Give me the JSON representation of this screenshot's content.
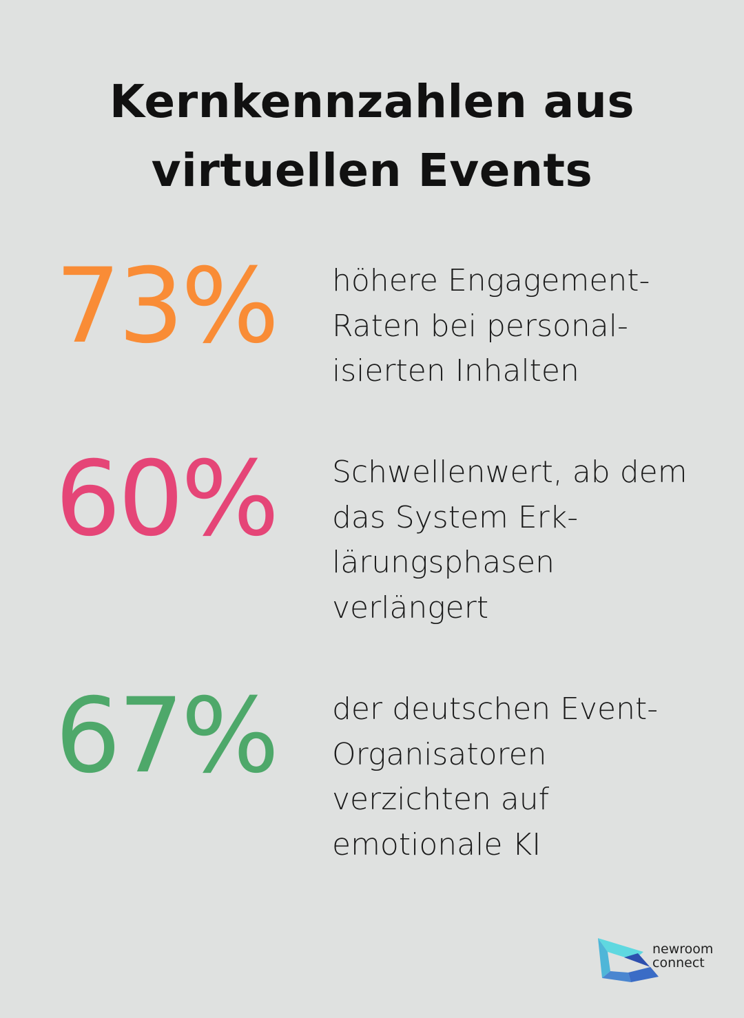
{
  "title": {
    "lines": [
      "Kernkennzahlen aus",
      "virtuellen Events"
    ]
  },
  "stats": [
    {
      "value": "73%",
      "color": "#f98c36",
      "lines": [
        "höhere Engagement-",
        "Raten bei personal-",
        "isierten Inhalten"
      ]
    },
    {
      "value": "60%",
      "color": "#e54577",
      "lines": [
        "Schwellenwert, ab dem",
        "das System Erk-",
        "lärungsphasen",
        "verlängert"
      ]
    },
    {
      "value": "67%",
      "color": "#4ea86a",
      "lines": [
        "der deutschen Event-",
        "Organisatoren",
        "verzichten auf",
        "emotionale KI"
      ]
    }
  ],
  "logo": {
    "line1": "newroom",
    "line2": "connect"
  }
}
